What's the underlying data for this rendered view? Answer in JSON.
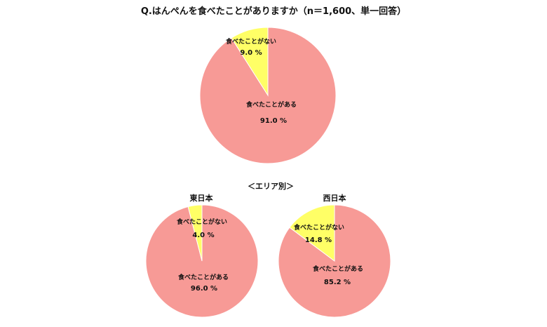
{
  "title": "Q.はんぺんを食べたことがありますか（n＝1,600、単一回答）",
  "section_title": "＜エリア別＞",
  "colors": {
    "ate": "#f79a96",
    "not_ate": "#ffff66",
    "stroke": "#ffffff",
    "text": "#111111"
  },
  "chart_data": [
    {
      "type": "pie",
      "title": "",
      "slices": [
        {
          "label": "食べたことがない",
          "value": 9.0,
          "display": "9.0 %",
          "color": "#ffff66"
        },
        {
          "label": "食べたことがある",
          "value": 91.0,
          "display": "91.0 %",
          "color": "#f79a96"
        }
      ]
    },
    {
      "type": "pie",
      "title": "東日本",
      "slices": [
        {
          "label": "食べたことがない",
          "value": 4.0,
          "display": "4.0 %",
          "color": "#ffff66"
        },
        {
          "label": "食べたことがある",
          "value": 96.0,
          "display": "96.0 %",
          "color": "#f79a96"
        }
      ]
    },
    {
      "type": "pie",
      "title": "西日本",
      "slices": [
        {
          "label": "食べたことがない",
          "value": 14.8,
          "display": "14.8 %",
          "color": "#ffff66"
        },
        {
          "label": "食べたことがある",
          "value": 85.2,
          "display": "85.2 %",
          "color": "#f79a96"
        }
      ]
    }
  ]
}
